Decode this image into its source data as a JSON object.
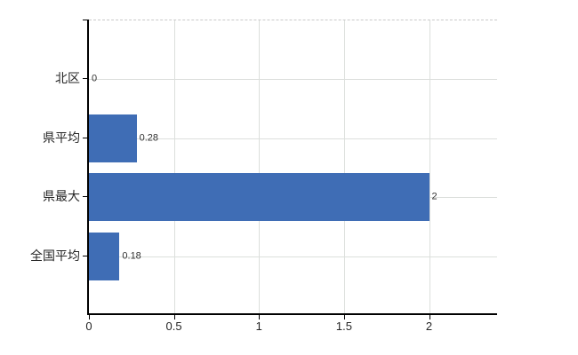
{
  "chart": {
    "background": "#ffffff",
    "bar_color": "#3f6db5",
    "grid_color": "#dcdfdc",
    "axis_color": "#000000",
    "top_border_color": "#c9c9c9",
    "tick_label_color": "#262626",
    "data_label_color": "#333333"
  },
  "chart_data": {
    "type": "bar",
    "orientation": "horizontal",
    "title": "",
    "xlabel": "",
    "ylabel": "",
    "categories": [
      "北区",
      "県平均",
      "県最大",
      "全国平均"
    ],
    "values": [
      0,
      0.28,
      2,
      0.18
    ],
    "data_labels": [
      "0",
      "0.28",
      "2",
      "0.18"
    ],
    "x_tick_labels": [
      "0",
      "0.5",
      "1",
      "1.5",
      "2"
    ],
    "x_tick_values": [
      0,
      0.5,
      1,
      1.5,
      2
    ],
    "xlim": [
      0,
      2.4
    ],
    "grid": true,
    "grid_horizontal_at_category_centers": true,
    "top_border_style": "dashed",
    "legend": false
  }
}
